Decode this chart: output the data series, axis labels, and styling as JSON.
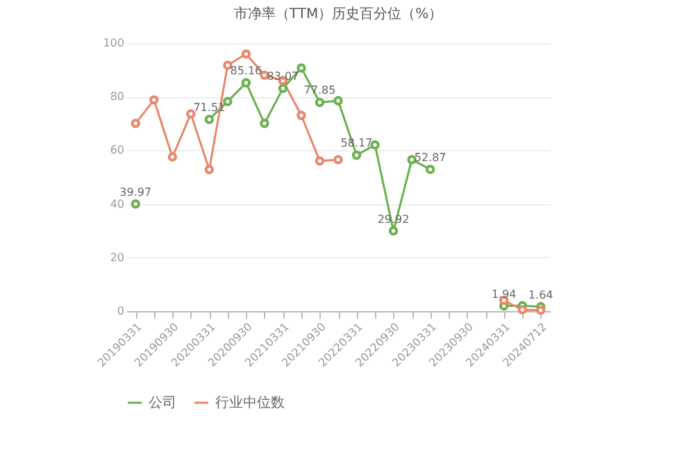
{
  "chart_data": {
    "type": "line",
    "title": "市净率（TTM）历史百分位（%）",
    "categories": [
      "20190331",
      null,
      "20190930",
      null,
      "20200331",
      null,
      "20200930",
      null,
      "20210331",
      null,
      "20210930",
      null,
      "20220331",
      null,
      "20220930",
      null,
      "20230331",
      null,
      "20230930",
      null,
      "20240331",
      null,
      "20240712"
    ],
    "series": [
      {
        "name": "公司",
        "color": "#6ab04c",
        "values": [
          39.97,
          null,
          null,
          null,
          71.51,
          78.2,
          85.16,
          70,
          83.07,
          90.7,
          77.85,
          78.5,
          58.17,
          62,
          29.92,
          56.5,
          52.87,
          null,
          null,
          null,
          1.94,
          2,
          1.64
        ],
        "value_labels": [
          "39.97",
          null,
          null,
          null,
          "71.51",
          null,
          "85.16",
          null,
          "83.07",
          null,
          "77.85",
          null,
          "58.17",
          null,
          "29.92",
          null,
          "52.87",
          null,
          null,
          null,
          "1.94",
          null,
          "1.64"
        ]
      },
      {
        "name": "行业中位数",
        "color": "#e8866a",
        "values": [
          70,
          78.8,
          57.5,
          73.6,
          52.8,
          91.7,
          95.9,
          88,
          86,
          73,
          56,
          56.5,
          null,
          null,
          null,
          null,
          null,
          null,
          null,
          null,
          4,
          0.5,
          0.3
        ]
      }
    ],
    "ylim": [
      0,
      100
    ],
    "yticks": [
      0,
      20,
      40,
      60,
      80,
      100
    ],
    "grid": "y",
    "legend": "bottom",
    "marker": "circle",
    "line_style": "solid"
  }
}
